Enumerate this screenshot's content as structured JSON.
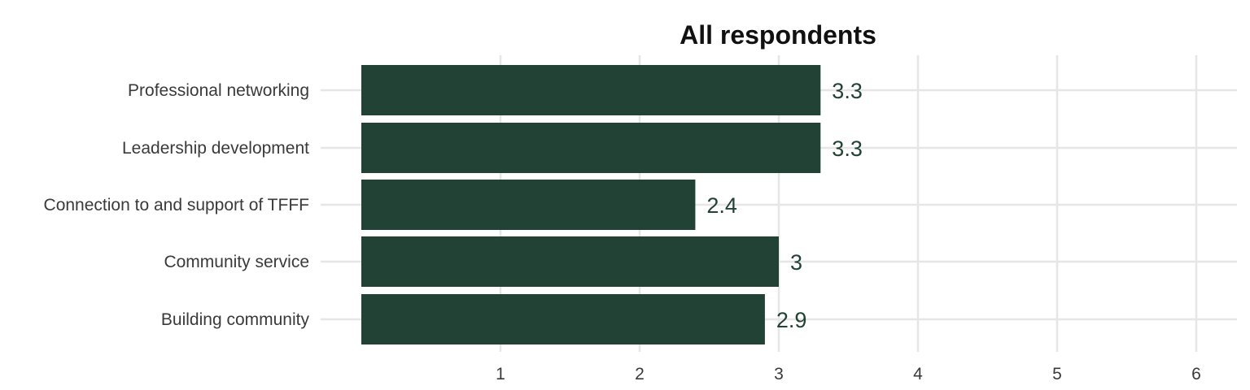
{
  "chart_data": {
    "type": "bar",
    "orientation": "horizontal",
    "title": "All respondents",
    "categories": [
      "Professional networking",
      "Leadership development",
      "Connection to and support of TFFF",
      "Community service",
      "Building community"
    ],
    "values": [
      3.3,
      3.3,
      2.4,
      3,
      2.9
    ],
    "value_labels": [
      "3.3",
      "3.3",
      "2.4",
      "3",
      "2.9"
    ],
    "x_ticks": [
      1,
      2,
      3,
      4,
      5,
      6
    ],
    "xlim": [
      0,
      6.3
    ],
    "xlabel": "",
    "ylabel": "",
    "grid": true,
    "legend": "none",
    "bar_color": "#214234",
    "label_color": "#214234"
  }
}
